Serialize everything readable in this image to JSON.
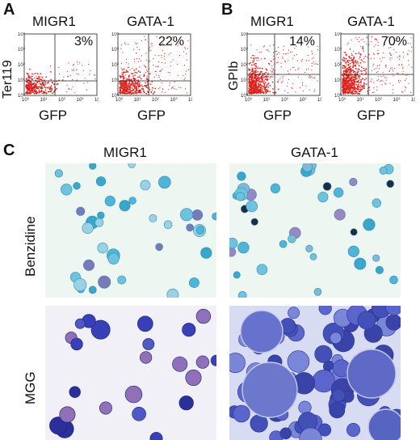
{
  "panels": {
    "A": {
      "letter": "A",
      "y_label": "Ter119",
      "plots": [
        {
          "title": "MIGR1",
          "percent": "3%",
          "x_label": "GFP"
        },
        {
          "title": "GATA-1",
          "percent": "22%",
          "x_label": "GFP"
        }
      ]
    },
    "B": {
      "letter": "B",
      "y_label": "GPIb",
      "plots": [
        {
          "title": "MIGR1",
          "percent": "14%",
          "x_label": "GFP"
        },
        {
          "title": "GATA-1",
          "percent": "70%",
          "x_label": "GFP"
        }
      ]
    },
    "C": {
      "letter": "C",
      "col_titles": [
        "MIGR1",
        "GATA-1"
      ],
      "row_labels": [
        "Benzidine",
        "MGG"
      ]
    }
  },
  "tick_labels": {
    "exponents": [
      "0",
      "1",
      "2",
      "3",
      "4"
    ],
    "base": "10"
  },
  "colors": {
    "dots": "#e0201b",
    "benzidine_bg": "#eef6f2",
    "mgg_bg": "#f0f0f6"
  }
}
